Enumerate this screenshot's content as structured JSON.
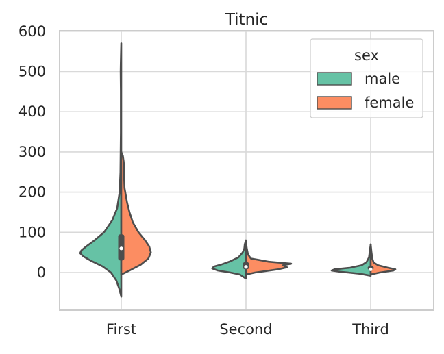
{
  "chart_data": {
    "type": "violin",
    "title": "Titnic",
    "xlabel": "",
    "ylabel": "",
    "split": true,
    "categories": [
      "First",
      "Second",
      "Third"
    ],
    "ylim": [
      -92,
      600
    ],
    "yticks": [
      0,
      100,
      200,
      300,
      400,
      500,
      600
    ],
    "grid": true,
    "legend": {
      "title": "sex",
      "position": "top-right"
    },
    "series": [
      {
        "name": "male",
        "color": "#66c2a5",
        "violins": [
          {
            "category": "First",
            "profile": [
              [
                -60,
                0
              ],
              [
                -40,
                0.05
              ],
              [
                -20,
                0.12
              ],
              [
                0,
                0.25
              ],
              [
                15,
                0.45
              ],
              [
                30,
                0.75
              ],
              [
                40,
                0.92
              ],
              [
                48,
                1.0
              ],
              [
                55,
                0.97
              ],
              [
                65,
                0.85
              ],
              [
                80,
                0.65
              ],
              [
                100,
                0.42
              ],
              [
                130,
                0.22
              ],
              [
                160,
                0.1
              ],
              [
                200,
                0.04
              ],
              [
                250,
                0.02
              ],
              [
                300,
                0.015
              ],
              [
                350,
                0.01
              ],
              [
                400,
                0.01
              ],
              [
                450,
                0.01
              ],
              [
                500,
                0.015
              ],
              [
                520,
                0.012
              ],
              [
                570,
                0
              ]
            ]
          },
          {
            "category": "Second",
            "profile": [
              [
                -15,
                0
              ],
              [
                -5,
                0.15
              ],
              [
                0,
                0.38
              ],
              [
                5,
                0.68
              ],
              [
                10,
                0.82
              ],
              [
                15,
                0.78
              ],
              [
                20,
                0.6
              ],
              [
                28,
                0.38
              ],
              [
                38,
                0.18
              ],
              [
                50,
                0.08
              ],
              [
                60,
                0.04
              ],
              [
                70,
                0.03
              ],
              [
                80,
                0
              ]
            ]
          },
          {
            "category": "Third",
            "profile": [
              [
                -8,
                0
              ],
              [
                -3,
                0.25
              ],
              [
                2,
                0.75
              ],
              [
                5,
                0.95
              ],
              [
                8,
                0.88
              ],
              [
                12,
                0.5
              ],
              [
                18,
                0.22
              ],
              [
                26,
                0.1
              ],
              [
                38,
                0.04
              ],
              [
                55,
                0.02
              ],
              [
                70,
                0
              ]
            ]
          }
        ]
      },
      {
        "name": "female",
        "color": "#fc8d62",
        "violins": [
          {
            "category": "First",
            "profile": [
              [
                -5,
                0
              ],
              [
                5,
                0.2
              ],
              [
                20,
                0.48
              ],
              [
                35,
                0.66
              ],
              [
                50,
                0.72
              ],
              [
                65,
                0.68
              ],
              [
                80,
                0.58
              ],
              [
                100,
                0.42
              ],
              [
                125,
                0.28
              ],
              [
                150,
                0.2
              ],
              [
                175,
                0.14
              ],
              [
                210,
                0.08
              ],
              [
                235,
                0.07
              ],
              [
                255,
                0.07
              ],
              [
                275,
                0.06
              ],
              [
                290,
                0.04
              ],
              [
                300,
                0
              ]
            ]
          },
          {
            "category": "Second",
            "profile": [
              [
                -5,
                0
              ],
              [
                0,
                0.22
              ],
              [
                8,
                0.78
              ],
              [
                13,
                1.0
              ],
              [
                18,
                0.9
              ],
              [
                22,
                1.1
              ],
              [
                27,
                0.55
              ],
              [
                35,
                0.12
              ],
              [
                45,
                0.05
              ],
              [
                60,
                0.02
              ],
              [
                75,
                0
              ]
            ]
          },
          {
            "category": "Third",
            "profile": [
              [
                -5,
                0
              ],
              [
                0,
                0.22
              ],
              [
                5,
                0.55
              ],
              [
                8,
                0.6
              ],
              [
                12,
                0.42
              ],
              [
                18,
                0.18
              ],
              [
                25,
                0.07
              ],
              [
                35,
                0.04
              ],
              [
                50,
                0.02
              ],
              [
                70,
                0
              ]
            ]
          }
        ]
      }
    ],
    "boxes": [
      {
        "category": "First",
        "q1": 30,
        "median": 60,
        "q3": 95,
        "whisker_low": 0,
        "whisker_high": 200
      },
      {
        "category": "Second",
        "q1": 8,
        "median": 14,
        "q3": 26,
        "whisker_low": 0,
        "whisker_high": 60
      },
      {
        "category": "Third",
        "q1": 7,
        "median": 8,
        "q3": 16,
        "whisker_low": 0,
        "whisker_high": 35
      }
    ]
  }
}
